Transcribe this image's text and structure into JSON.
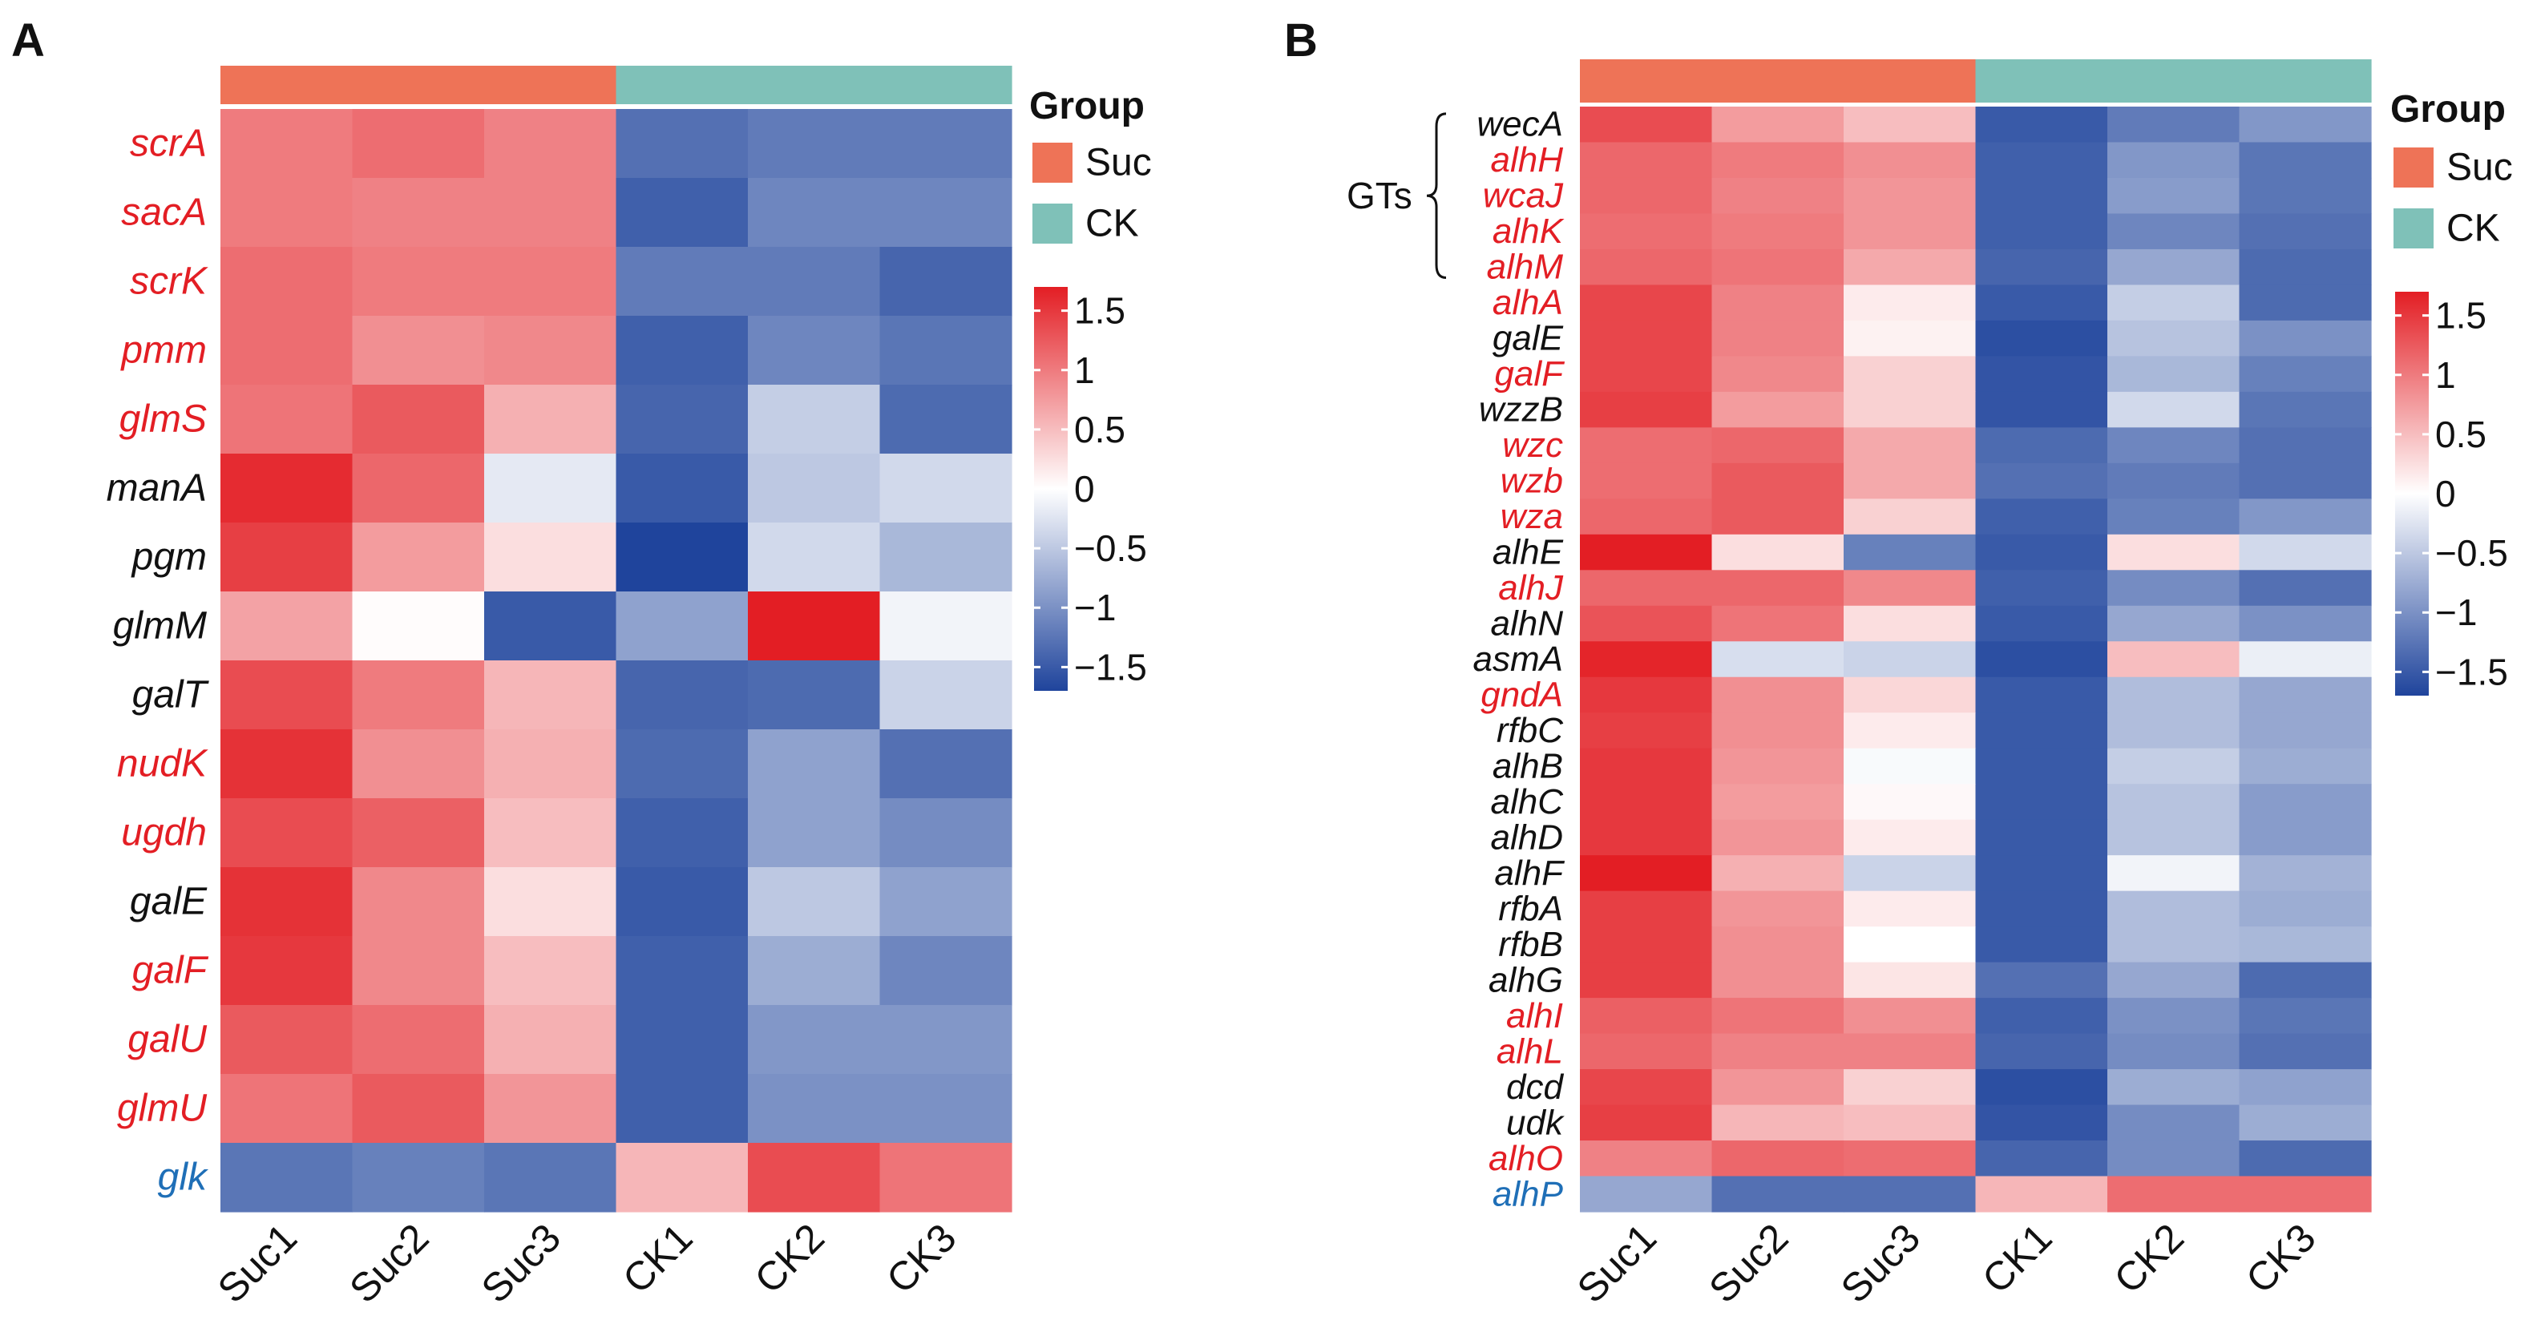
{
  "colors": {
    "low": "#1f449c",
    "mid": "#ffffff",
    "high": "#e31e24",
    "suc": "#ee7357",
    "ck": "#7fc1b8",
    "gene_black": "#111111",
    "gene_red": "#e31e24",
    "gene_blue": "#1f6fb7"
  },
  "chart_data": [
    {
      "type": "heatmap",
      "panel_label": "A",
      "columns": [
        "Suc1",
        "Suc2",
        "Suc3",
        "CK1",
        "CK2",
        "CK3"
      ],
      "column_groups": [
        "Suc",
        "Suc",
        "Suc",
        "CK",
        "CK",
        "CK"
      ],
      "legend": {
        "group_title": "Group",
        "groups": [
          {
            "name": "Suc",
            "color": "#ee7357"
          },
          {
            "name": "CK",
            "color": "#7fc1b8"
          }
        ],
        "scale_ticks": [
          1.5,
          1,
          0.5,
          0,
          -0.5,
          -1,
          -1.5
        ],
        "scale_tick_labels": [
          "1.5",
          "1",
          "0.5",
          "0",
          "−0.5",
          "−1",
          "−1.5"
        ],
        "scale_range": [
          -1.7,
          1.7
        ]
      },
      "rows": [
        {
          "gene": "scrA",
          "color": "red",
          "values": [
            1.0,
            1.1,
            0.95,
            -1.3,
            -1.2,
            -1.2
          ]
        },
        {
          "gene": "sacA",
          "color": "red",
          "values": [
            1.0,
            0.95,
            0.95,
            -1.45,
            -1.1,
            -1.1
          ]
        },
        {
          "gene": "scrK",
          "color": "red",
          "values": [
            1.1,
            1.0,
            1.0,
            -1.2,
            -1.2,
            -1.4
          ]
        },
        {
          "gene": "pmm",
          "color": "red",
          "values": [
            1.1,
            0.85,
            0.9,
            -1.45,
            -1.1,
            -1.25
          ]
        },
        {
          "gene": "glmS",
          "color": "red",
          "values": [
            1.05,
            1.25,
            0.6,
            -1.4,
            -0.45,
            -1.35
          ]
        },
        {
          "gene": "manA",
          "color": "black",
          "values": [
            1.6,
            1.15,
            -0.2,
            -1.5,
            -0.5,
            -0.35
          ]
        },
        {
          "gene": "pgm",
          "color": "black",
          "values": [
            1.45,
            0.75,
            0.25,
            -1.7,
            -0.35,
            -0.65
          ]
        },
        {
          "gene": "glmM",
          "color": "black",
          "values": [
            0.7,
            0.02,
            -1.5,
            -0.85,
            1.7,
            -0.1
          ]
        },
        {
          "gene": "galT",
          "color": "black",
          "values": [
            1.35,
            1.0,
            0.55,
            -1.4,
            -1.35,
            -0.4
          ]
        },
        {
          "gene": "nudK",
          "color": "red",
          "values": [
            1.55,
            0.85,
            0.6,
            -1.35,
            -0.85,
            -1.3
          ]
        },
        {
          "gene": "ugdh",
          "color": "red",
          "values": [
            1.35,
            1.2,
            0.5,
            -1.45,
            -0.85,
            -1.05
          ]
        },
        {
          "gene": "galE",
          "color": "black",
          "values": [
            1.55,
            0.9,
            0.25,
            -1.5,
            -0.5,
            -0.85
          ]
        },
        {
          "gene": "galF",
          "color": "red",
          "values": [
            1.5,
            0.9,
            0.5,
            -1.45,
            -0.75,
            -1.1
          ]
        },
        {
          "gene": "galU",
          "color": "red",
          "values": [
            1.25,
            1.1,
            0.6,
            -1.45,
            -0.95,
            -0.95
          ]
        },
        {
          "gene": "glmU",
          "color": "red",
          "values": [
            1.05,
            1.25,
            0.8,
            -1.45,
            -1.0,
            -1.0
          ]
        },
        {
          "gene": "glk",
          "color": "blue",
          "values": [
            -1.25,
            -1.15,
            -1.25,
            0.55,
            1.35,
            1.05
          ]
        }
      ]
    },
    {
      "type": "heatmap",
      "panel_label": "B",
      "columns": [
        "Suc1",
        "Suc2",
        "Suc3",
        "CK1",
        "CK2",
        "CK3"
      ],
      "column_groups": [
        "Suc",
        "Suc",
        "Suc",
        "CK",
        "CK",
        "CK"
      ],
      "annotation": "GTs",
      "legend": {
        "group_title": "Group",
        "groups": [
          {
            "name": "Suc",
            "color": "#ee7357"
          },
          {
            "name": "CK",
            "color": "#7fc1b8"
          }
        ],
        "scale_ticks": [
          1.5,
          1,
          0.5,
          0,
          -0.5,
          -1,
          -1.5
        ],
        "scale_tick_labels": [
          "1.5",
          "1",
          "0.5",
          "0",
          "−0.5",
          "−1",
          "−1.5"
        ],
        "scale_range": [
          -1.7,
          1.7
        ]
      },
      "rows": [
        {
          "gene": "wecA",
          "color": "black",
          "values": [
            1.35,
            0.75,
            0.5,
            -1.5,
            -1.2,
            -0.95
          ]
        },
        {
          "gene": "alhH",
          "color": "red",
          "values": [
            1.15,
            1.0,
            0.85,
            -1.45,
            -0.95,
            -1.25
          ]
        },
        {
          "gene": "wcaJ",
          "color": "red",
          "values": [
            1.15,
            0.95,
            0.8,
            -1.45,
            -0.9,
            -1.25
          ]
        },
        {
          "gene": "alhK",
          "color": "red",
          "values": [
            1.1,
            1.0,
            0.8,
            -1.45,
            -1.1,
            -1.3
          ]
        },
        {
          "gene": "alhM",
          "color": "red",
          "values": [
            1.15,
            1.05,
            0.65,
            -1.4,
            -0.8,
            -1.35
          ]
        },
        {
          "gene": "alhA",
          "color": "red",
          "values": [
            1.4,
            0.95,
            0.15,
            -1.5,
            -0.45,
            -1.35
          ]
        },
        {
          "gene": "galE",
          "color": "black",
          "values": [
            1.4,
            0.95,
            0.1,
            -1.6,
            -0.55,
            -1.0
          ]
        },
        {
          "gene": "galF",
          "color": "red",
          "values": [
            1.4,
            0.9,
            0.35,
            -1.55,
            -0.65,
            -1.15
          ]
        },
        {
          "gene": "wzzB",
          "color": "black",
          "values": [
            1.45,
            0.75,
            0.35,
            -1.55,
            -0.35,
            -1.25
          ]
        },
        {
          "gene": "wzc",
          "color": "red",
          "values": [
            1.1,
            1.15,
            0.65,
            -1.35,
            -1.1,
            -1.3
          ]
        },
        {
          "gene": "wzb",
          "color": "red",
          "values": [
            1.1,
            1.25,
            0.65,
            -1.3,
            -1.2,
            -1.3
          ]
        },
        {
          "gene": "wza",
          "color": "red",
          "values": [
            1.15,
            1.25,
            0.35,
            -1.45,
            -1.15,
            -0.95
          ]
        },
        {
          "gene": "alhE",
          "color": "black",
          "values": [
            1.7,
            0.25,
            -1.15,
            -1.5,
            0.25,
            -0.35
          ]
        },
        {
          "gene": "alhJ",
          "color": "red",
          "values": [
            1.15,
            1.15,
            0.9,
            -1.45,
            -1.05,
            -1.3
          ]
        },
        {
          "gene": "alhN",
          "color": "black",
          "values": [
            1.3,
            1.05,
            0.25,
            -1.5,
            -0.8,
            -1.0
          ]
        },
        {
          "gene": "asmA",
          "color": "black",
          "values": [
            1.65,
            -0.3,
            -0.4,
            -1.6,
            0.5,
            -0.15
          ]
        },
        {
          "gene": "gndA",
          "color": "red",
          "values": [
            1.5,
            0.85,
            0.3,
            -1.5,
            -0.6,
            -0.8
          ]
        },
        {
          "gene": "rfbC",
          "color": "black",
          "values": [
            1.45,
            0.85,
            0.15,
            -1.5,
            -0.6,
            -0.8
          ]
        },
        {
          "gene": "alhB",
          "color": "black",
          "values": [
            1.5,
            0.8,
            -0.05,
            -1.5,
            -0.45,
            -0.75
          ]
        },
        {
          "gene": "alhC",
          "color": "black",
          "values": [
            1.5,
            0.75,
            0.05,
            -1.5,
            -0.55,
            -0.9
          ]
        },
        {
          "gene": "alhD",
          "color": "black",
          "values": [
            1.5,
            0.8,
            0.15,
            -1.5,
            -0.55,
            -0.9
          ]
        },
        {
          "gene": "alhF",
          "color": "black",
          "values": [
            1.7,
            0.6,
            -0.4,
            -1.5,
            -0.1,
            -0.7
          ]
        },
        {
          "gene": "rfbA",
          "color": "black",
          "values": [
            1.45,
            0.8,
            0.15,
            -1.5,
            -0.6,
            -0.75
          ]
        },
        {
          "gene": "rfbB",
          "color": "black",
          "values": [
            1.45,
            0.85,
            0.0,
            -1.5,
            -0.6,
            -0.65
          ]
        },
        {
          "gene": "alhG",
          "color": "black",
          "values": [
            1.45,
            0.85,
            0.2,
            -1.3,
            -0.8,
            -1.35
          ]
        },
        {
          "gene": "alhI",
          "color": "red",
          "values": [
            1.2,
            1.05,
            0.85,
            -1.45,
            -1.0,
            -1.25
          ]
        },
        {
          "gene": "alhL",
          "color": "red",
          "values": [
            1.15,
            0.95,
            0.95,
            -1.4,
            -1.05,
            -1.3
          ]
        },
        {
          "gene": "dcd",
          "color": "black",
          "values": [
            1.4,
            0.8,
            0.35,
            -1.6,
            -0.75,
            -0.85
          ]
        },
        {
          "gene": "udk",
          "color": "black",
          "values": [
            1.45,
            0.55,
            0.5,
            -1.55,
            -1.05,
            -0.75
          ]
        },
        {
          "gene": "alhO",
          "color": "red",
          "values": [
            0.95,
            1.15,
            1.1,
            -1.4,
            -1.05,
            -1.35
          ]
        },
        {
          "gene": "alhP",
          "color": "blue",
          "values": [
            -0.8,
            -1.3,
            -1.3,
            0.55,
            1.1,
            1.1
          ]
        }
      ]
    }
  ]
}
